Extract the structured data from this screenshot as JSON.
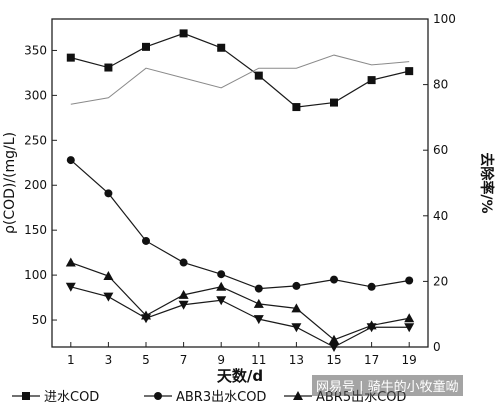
{
  "chart_data": {
    "type": "line",
    "xlabel": "天数/d",
    "ylabel_left": "ρ(COD)/(mg/L)",
    "ylabel_right": "去除率/%",
    "x_ticks": [
      1,
      3,
      5,
      7,
      9,
      11,
      13,
      15,
      17,
      19
    ],
    "y_left_ticks": [
      50,
      100,
      150,
      200,
      250,
      300,
      350
    ],
    "y_right_ticks": [
      0,
      20,
      40,
      60,
      80,
      100
    ],
    "xlim": [
      0,
      20
    ],
    "ylim_left": [
      20,
      385
    ],
    "ylim_right": [
      0,
      100
    ],
    "x": [
      1,
      3,
      5,
      7,
      9,
      11,
      13,
      15,
      17,
      19
    ],
    "series": [
      {
        "name": "进水COD",
        "axis": "left",
        "marker": "square",
        "values": [
          342,
          331,
          354,
          369,
          353,
          322,
          287,
          292,
          317,
          327
        ]
      },
      {
        "name": "ABR3出水COD",
        "axis": "left",
        "marker": "circle",
        "values": [
          228,
          191,
          138,
          114,
          101,
          85,
          88,
          95,
          87,
          94
        ]
      },
      {
        "name": "ABR5出水COD",
        "axis": "left",
        "marker": "triangle-up",
        "values": [
          114,
          99,
          55,
          78,
          87,
          68,
          63,
          28,
          44,
          52
        ]
      },
      {
        "name": "",
        "axis": "left",
        "marker": "triangle-down",
        "values": [
          87,
          76,
          52,
          67,
          72,
          51,
          42,
          20,
          42,
          42
        ]
      },
      {
        "name": "",
        "axis": "right",
        "marker": "none",
        "values": [
          74,
          76,
          85,
          82,
          79,
          85,
          85,
          89,
          86,
          87
        ]
      }
    ],
    "legend": {
      "placement": "bottom",
      "items": [
        "进水COD",
        "ABR3出水COD",
        "ABR5出水COD"
      ]
    }
  },
  "watermark": "网易号 | 骑牛的小牧童呦"
}
